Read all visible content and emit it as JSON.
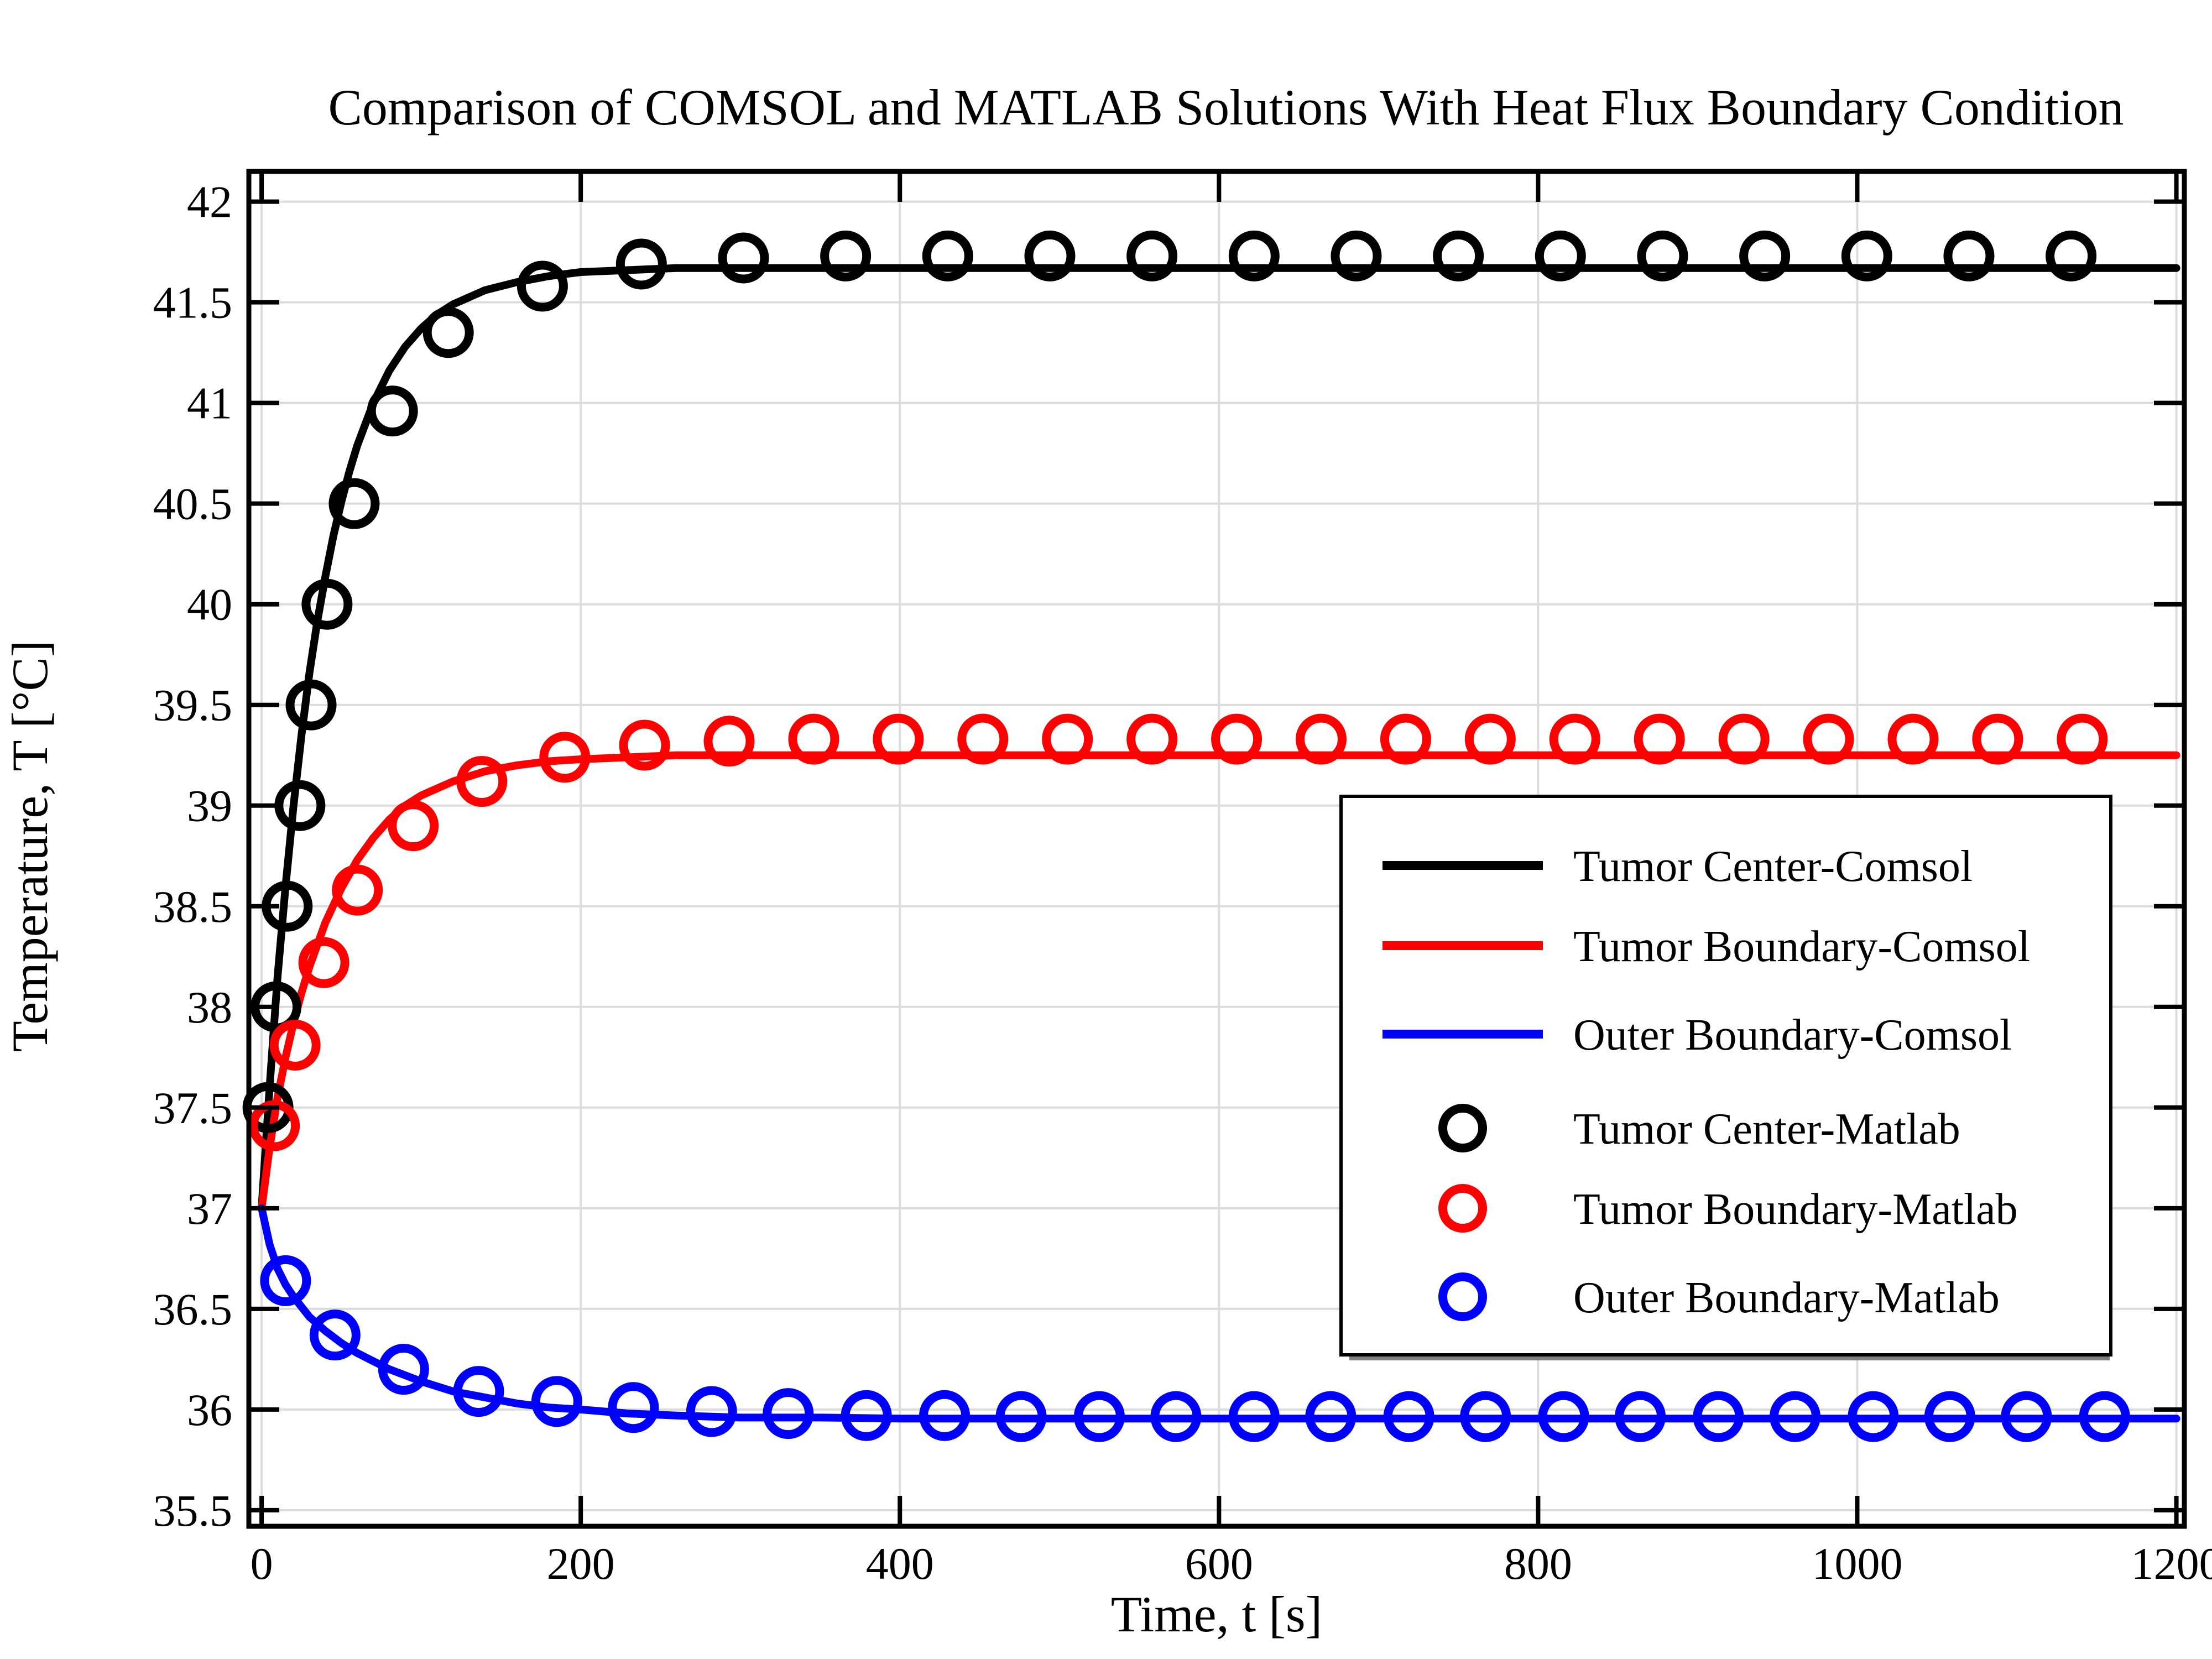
{
  "chart_data": {
    "type": "line",
    "title": "Comparison of COMSOL and MATLAB Solutions With Heat Flux Boundary Condition",
    "xlabel": "Time, t [s]",
    "ylabel": "Temperature, T [°C]",
    "xlim": [
      -8,
      1205
    ],
    "ylim": [
      35.42,
      42.15
    ],
    "x_ticks": [
      0,
      200,
      400,
      600,
      800,
      1000,
      1200
    ],
    "x_tick_labels": [
      "0",
      "200",
      "400",
      "600",
      "800",
      "1000",
      "1200"
    ],
    "y_ticks": [
      35.5,
      36,
      36.5,
      37,
      37.5,
      38,
      38.5,
      39,
      39.5,
      40,
      40.5,
      41,
      41.5,
      42
    ],
    "y_tick_labels": [
      "35.5",
      "36",
      "36.5",
      "37",
      "37.5",
      "38",
      "38.5",
      "39",
      "39.5",
      "40",
      "40.5",
      "41",
      "41.5",
      "42"
    ],
    "grid": true,
    "legend_position": "center-right",
    "series": [
      {
        "name": "Tumor Center-Comsol",
        "style": "line",
        "color": "#000000",
        "x": [
          0,
          5,
          10,
          15,
          20,
          25,
          30,
          35,
          40,
          45,
          50,
          55,
          60,
          70,
          80,
          90,
          100,
          110,
          120,
          140,
          160,
          180,
          200,
          230,
          260,
          300,
          350,
          400,
          500,
          600,
          700,
          800,
          900,
          1000,
          1100,
          1200
        ],
        "y": [
          37.0,
          37.6,
          38.15,
          38.6,
          39.0,
          39.35,
          39.66,
          39.92,
          40.14,
          40.34,
          40.51,
          40.66,
          40.79,
          41.0,
          41.16,
          41.28,
          41.37,
          41.44,
          41.49,
          41.56,
          41.6,
          41.63,
          41.65,
          41.66,
          41.67,
          41.67,
          41.67,
          41.67,
          41.67,
          41.67,
          41.67,
          41.67,
          41.67,
          41.67,
          41.67,
          41.67
        ]
      },
      {
        "name": "Tumor Boundary-Comsol",
        "style": "line",
        "color": "#ff0000",
        "x": [
          0,
          5,
          10,
          15,
          20,
          25,
          30,
          40,
          50,
          60,
          70,
          80,
          90,
          100,
          120,
          140,
          160,
          180,
          200,
          230,
          260,
          300,
          350,
          400,
          500,
          600,
          700,
          800,
          900,
          1000,
          1100,
          1200
        ],
        "y": [
          37.0,
          37.3,
          37.55,
          37.75,
          37.92,
          38.07,
          38.2,
          38.42,
          38.59,
          38.73,
          38.84,
          38.93,
          39.0,
          39.05,
          39.12,
          39.17,
          39.2,
          39.22,
          39.23,
          39.24,
          39.25,
          39.25,
          39.25,
          39.25,
          39.25,
          39.25,
          39.25,
          39.25,
          39.25,
          39.25,
          39.25,
          39.25
        ]
      },
      {
        "name": "Outer Boundary-Comsol",
        "style": "line",
        "color": "#0000ff",
        "x": [
          0,
          5,
          10,
          15,
          20,
          30,
          40,
          50,
          60,
          70,
          80,
          90,
          100,
          120,
          140,
          160,
          180,
          200,
          230,
          260,
          300,
          350,
          400,
          500,
          600,
          700,
          800,
          900,
          1000,
          1100,
          1200
        ],
        "y": [
          37.0,
          36.82,
          36.7,
          36.62,
          36.56,
          36.46,
          36.39,
          36.33,
          36.28,
          36.24,
          36.2,
          36.17,
          36.14,
          36.09,
          36.06,
          36.03,
          36.01,
          36.0,
          35.98,
          35.97,
          35.96,
          35.96,
          35.955,
          35.955,
          35.955,
          35.955,
          35.955,
          35.955,
          35.955,
          35.955,
          35.955
        ]
      },
      {
        "name": "Tumor Center-Matlab",
        "style": "marker",
        "color": "#000000",
        "x": [
          4,
          9,
          16,
          24,
          31,
          41,
          58,
          82,
          117,
          176,
          238,
          302,
          366,
          430,
          494,
          558,
          622,
          686,
          750,
          814,
          878,
          942,
          1006,
          1070,
          1134
        ],
        "y": [
          37.5,
          38.0,
          38.5,
          39.0,
          39.5,
          40.0,
          40.5,
          40.96,
          41.35,
          41.58,
          41.69,
          41.72,
          41.73,
          41.73,
          41.73,
          41.73,
          41.73,
          41.73,
          41.73,
          41.73,
          41.73,
          41.73,
          41.73,
          41.73,
          41.73
        ]
      },
      {
        "name": "Tumor Boundary-Matlab",
        "style": "marker",
        "color": "#ff0000",
        "x": [
          8,
          21,
          39,
          60,
          95,
          138,
          190,
          240,
          293,
          346,
          399,
          452,
          505,
          558,
          611,
          664,
          717,
          770,
          823,
          876,
          929,
          982,
          1035,
          1088,
          1141
        ],
        "y": [
          37.41,
          37.81,
          38.22,
          38.58,
          38.9,
          39.12,
          39.24,
          39.3,
          39.32,
          39.33,
          39.33,
          39.33,
          39.33,
          39.33,
          39.33,
          39.33,
          39.33,
          39.33,
          39.33,
          39.33,
          39.33,
          39.33,
          39.33,
          39.33,
          39.33
        ]
      },
      {
        "name": "Outer Boundary-Matlab",
        "style": "marker",
        "color": "#0000ff",
        "x": [
          15,
          46,
          89,
          136,
          185,
          233,
          282,
          330,
          379,
          428,
          476,
          525,
          573,
          622,
          670,
          719,
          767,
          816,
          864,
          913,
          961,
          1010,
          1058,
          1106,
          1155
        ],
        "y": [
          36.64,
          36.37,
          36.2,
          36.09,
          36.04,
          36.01,
          35.99,
          35.98,
          35.97,
          35.97,
          35.965,
          35.965,
          35.965,
          35.965,
          35.965,
          35.965,
          35.965,
          35.965,
          35.965,
          35.965,
          35.965,
          35.965,
          35.965,
          35.965,
          35.965
        ]
      }
    ]
  }
}
